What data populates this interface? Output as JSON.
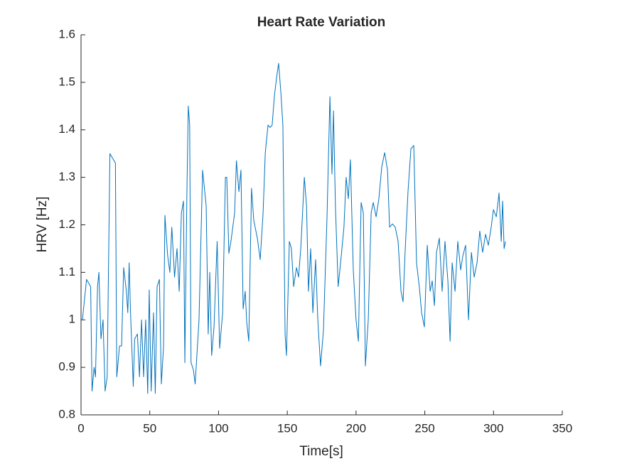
{
  "chart_data": {
    "type": "line",
    "title": "Heart Rate Variation",
    "x_label": "Time[s]",
    "y_label": "HRV [Hz]",
    "xlim": [
      0,
      350
    ],
    "xticks": [
      0,
      50,
      100,
      150,
      200,
      250,
      300,
      350
    ],
    "ylim": [
      0.8,
      1.6
    ],
    "yticks": [
      0.8,
      0.9,
      1,
      1.1,
      1.2,
      1.3,
      1.4,
      1.5,
      1.6
    ],
    "grid": false,
    "series": [
      {
        "color": "#0072bd",
        "x": [
          1,
          4,
          7,
          8,
          9.5,
          10.5,
          12,
          13,
          14.5,
          16,
          17.5,
          19,
          21,
          25,
          26,
          28,
          29.5,
          31,
          33,
          34,
          35,
          36,
          38,
          39,
          41,
          42.5,
          44,
          45.5,
          47,
          48.5,
          49.6,
          51,
          52.7,
          54,
          55.3,
          57,
          58.4,
          60,
          61,
          63,
          64.6,
          66,
          68,
          69.8,
          71.4,
          73,
          74.5,
          75.5,
          77,
          78,
          79,
          80,
          81.7,
          83,
          85.8,
          88.4,
          91,
          92.5,
          93.6,
          95,
          96.7,
          99,
          100.8,
          103,
          105,
          106,
          107.5,
          109,
          111.7,
          113,
          114.8,
          116.3,
          117.9,
          119.4,
          120.5,
          122,
          124,
          125.6,
          128.2,
          130.3,
          132.4,
          134,
          136,
          137.5,
          139,
          140.6,
          142.2,
          143.7,
          145.3,
          146.8,
          148.4,
          149.4,
          151.5,
          153,
          154.6,
          156.7,
          158.2,
          159.8,
          162.4,
          164,
          165.4,
          167,
          168.6,
          170.6,
          172.2,
          174.2,
          176.3,
          178.9,
          181,
          182.5,
          183.6,
          185,
          187,
          189,
          191.2,
          192.8,
          194.4,
          195.9,
          198,
          200,
          201.7,
          203.7,
          205.3,
          206.8,
          208.9,
          211,
          212.5,
          214.6,
          216.6,
          218.7,
          220.8,
          222.9,
          224.4,
          226.5,
          228.5,
          230.6,
          232.7,
          234.2,
          235.8,
          237.8,
          239.9,
          242,
          244,
          246.1,
          247.7,
          249.7,
          251.8,
          253.9,
          255.4,
          257,
          258.5,
          260.6,
          262.6,
          264.7,
          266.8,
          268.4,
          269.9,
          272,
          274,
          276.1,
          277.7,
          279.7,
          281.8,
          283.9,
          285.9,
          288,
          290,
          292.1,
          294.2,
          296.2,
          298.3,
          299.9,
          302,
          304,
          305.6,
          306.6,
          307.7,
          308.7
        ],
        "values": [
          1.0,
          1.085,
          1.07,
          0.85,
          0.9,
          0.88,
          1.07,
          1.1,
          0.96,
          1.0,
          0.85,
          0.88,
          1.35,
          1.33,
          0.88,
          0.945,
          0.945,
          1.11,
          1.06,
          1.015,
          1.12,
          1.015,
          0.86,
          0.96,
          0.97,
          0.88,
          1.0,
          0.88,
          1.0,
          0.845,
          1.063,
          0.85,
          1.015,
          0.845,
          1.07,
          1.085,
          0.865,
          0.943,
          1.22,
          1.135,
          1.1,
          1.195,
          1.09,
          1.15,
          1.06,
          1.225,
          1.25,
          0.91,
          1.27,
          1.45,
          1.41,
          0.91,
          0.895,
          0.865,
          1.0,
          1.315,
          1.24,
          0.97,
          1.1,
          0.925,
          0.985,
          1.165,
          0.94,
          1.015,
          1.3,
          1.3,
          1.14,
          1.165,
          1.225,
          1.335,
          1.27,
          1.315,
          1.023,
          1.06,
          0.995,
          0.955,
          1.277,
          1.21,
          1.172,
          1.127,
          1.225,
          1.352,
          1.41,
          1.405,
          1.41,
          1.47,
          1.51,
          1.54,
          1.48,
          1.41,
          0.97,
          0.925,
          1.165,
          1.15,
          1.07,
          1.11,
          1.09,
          1.15,
          1.3,
          1.24,
          1.06,
          1.15,
          1.015,
          1.127,
          1.0,
          0.903,
          0.978,
          1.217,
          1.47,
          1.307,
          1.44,
          1.24,
          1.07,
          1.127,
          1.195,
          1.3,
          1.255,
          1.337,
          1.105,
          1.0,
          0.955,
          1.247,
          1.225,
          0.903,
          1.0,
          1.225,
          1.247,
          1.217,
          1.255,
          1.322,
          1.352,
          1.315,
          1.195,
          1.202,
          1.195,
          1.165,
          1.06,
          1.038,
          1.15,
          1.27,
          1.36,
          1.367,
          1.12,
          1.067,
          1.015,
          0.985,
          1.157,
          1.06,
          1.082,
          1.03,
          1.142,
          1.172,
          1.06,
          1.165,
          1.082,
          0.955,
          1.12,
          1.06,
          1.165,
          1.105,
          1.135,
          1.157,
          1.0,
          1.142,
          1.09,
          1.12,
          1.187,
          1.142,
          1.18,
          1.157,
          1.195,
          1.232,
          1.217,
          1.267,
          1.165,
          1.25,
          1.15,
          1.165
        ]
      }
    ]
  }
}
